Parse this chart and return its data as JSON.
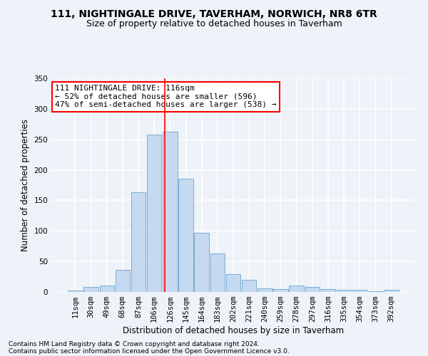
{
  "title1": "111, NIGHTINGALE DRIVE, TAVERHAM, NORWICH, NR8 6TR",
  "title2": "Size of property relative to detached houses in Taverham",
  "xlabel": "Distribution of detached houses by size in Taverham",
  "ylabel": "Number of detached properties",
  "categories": [
    "11sqm",
    "30sqm",
    "49sqm",
    "68sqm",
    "87sqm",
    "106sqm",
    "126sqm",
    "145sqm",
    "164sqm",
    "183sqm",
    "202sqm",
    "221sqm",
    "240sqm",
    "259sqm",
    "278sqm",
    "297sqm",
    "316sqm",
    "335sqm",
    "354sqm",
    "373sqm",
    "392sqm"
  ],
  "values": [
    2,
    8,
    11,
    36,
    163,
    258,
    263,
    185,
    97,
    63,
    29,
    20,
    6,
    5,
    10,
    8,
    5,
    4,
    3,
    1,
    4
  ],
  "bar_color": "#c5d9f0",
  "bar_edge_color": "#7aadd4",
  "vline_x_index": 5.65,
  "vline_color": "red",
  "annotation_line1": "111 NIGHTINGALE DRIVE: 116sqm",
  "annotation_line2": "← 52% of detached houses are smaller (596)",
  "annotation_line3": "47% of semi-detached houses are larger (538) →",
  "annotation_box_color": "white",
  "annotation_box_edge": "red",
  "ylim": [
    0,
    350
  ],
  "yticks": [
    0,
    50,
    100,
    150,
    200,
    250,
    300,
    350
  ],
  "footnote1": "Contains HM Land Registry data © Crown copyright and database right 2024.",
  "footnote2": "Contains public sector information licensed under the Open Government Licence v3.0.",
  "background_color": "#eef2f9",
  "grid_color": "white",
  "title1_fontsize": 10,
  "title2_fontsize": 9,
  "axis_label_fontsize": 8.5,
  "tick_fontsize": 7.5,
  "annotation_fontsize": 8,
  "footnote_fontsize": 6.5
}
